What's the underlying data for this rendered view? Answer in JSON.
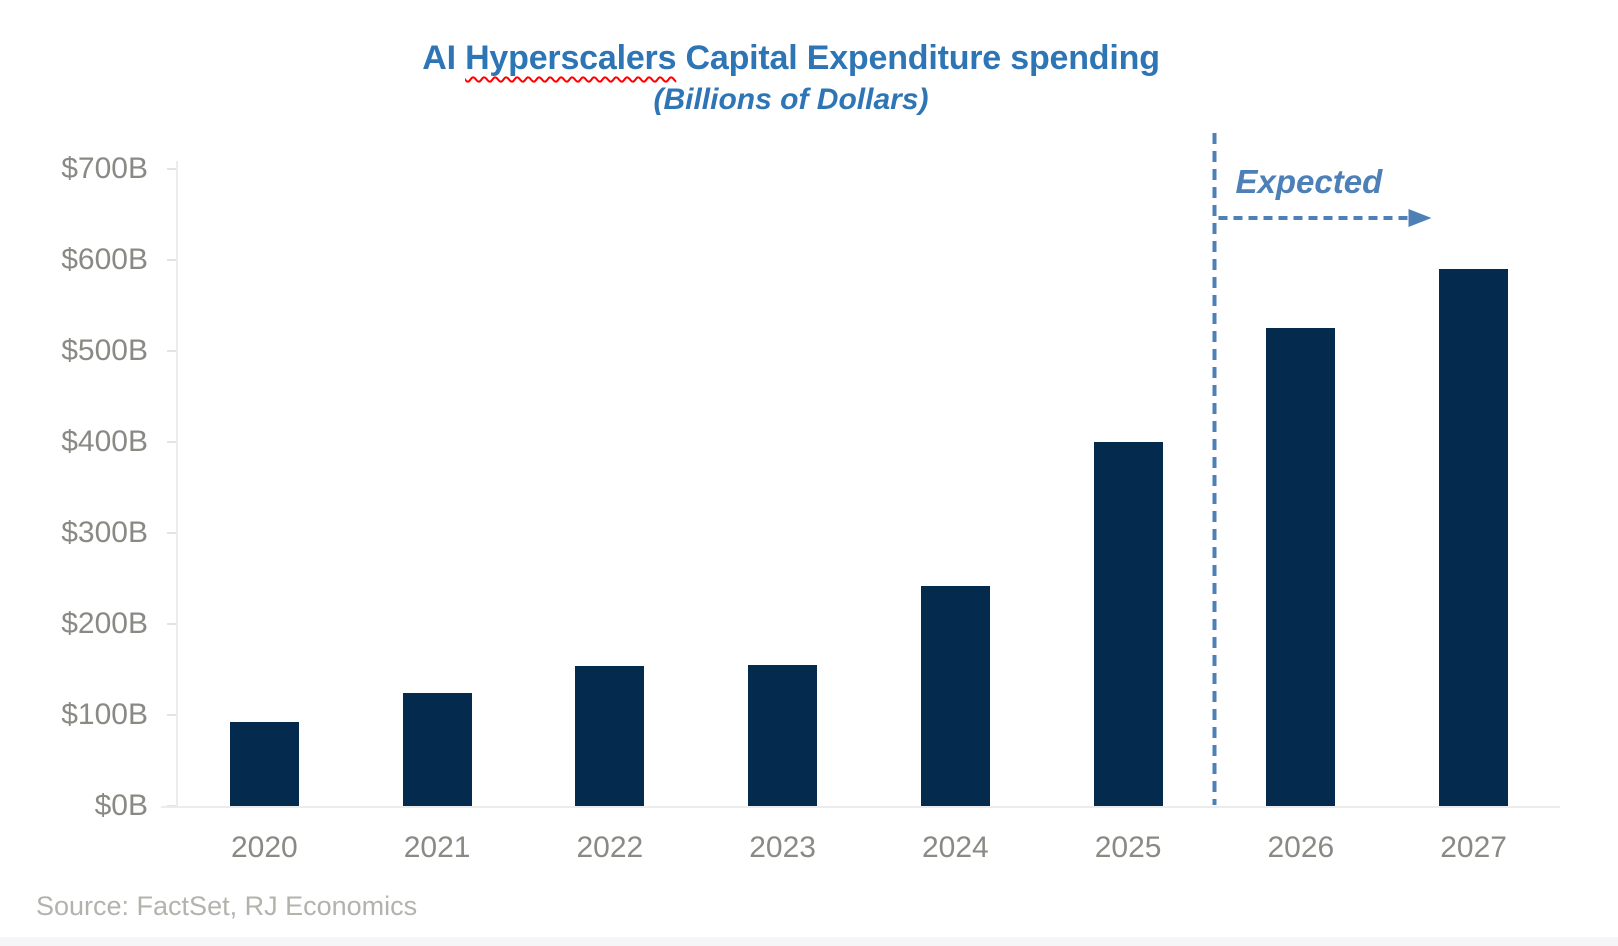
{
  "title": {
    "prefix": "AI ",
    "misspelled_word": "Hyperscalers",
    "suffix": " Capital Expenditure spending",
    "subtitle": "(Billions of Dollars)"
  },
  "annotation": {
    "expected_label": "Expected"
  },
  "source": "Source: FactSet, RJ Economics",
  "colors": {
    "title_blue": "#2e75b6",
    "bar_navy": "#042b4d",
    "annotation_blue": "#4d80b7",
    "axis_label_gray": "#8a8a85",
    "source_gray": "#b3b3ae",
    "axis_line_gray": "#ececec",
    "spellcheck_red": "#ff0000"
  },
  "chart_data": {
    "type": "bar",
    "title": "AI Hyperscalers Capital Expenditure spending",
    "subtitle": "(Billions of Dollars)",
    "categories": [
      "2020",
      "2021",
      "2022",
      "2023",
      "2024",
      "2025",
      "2026",
      "2027"
    ],
    "values": [
      92,
      124,
      154,
      155,
      242,
      400,
      525,
      590
    ],
    "xlabel": "",
    "ylabel": "",
    "ylim": [
      0,
      700
    ],
    "ytick_step": 100,
    "ytick_labels": [
      "$0B",
      "$100B",
      "$200B",
      "$300B",
      "$400B",
      "$500B",
      "$600B",
      "$700B"
    ],
    "grid": false,
    "legend": false,
    "expected_divider_after_category": "2025",
    "expected_categories": [
      "2026",
      "2027"
    ],
    "annotation_text": "Expected"
  }
}
